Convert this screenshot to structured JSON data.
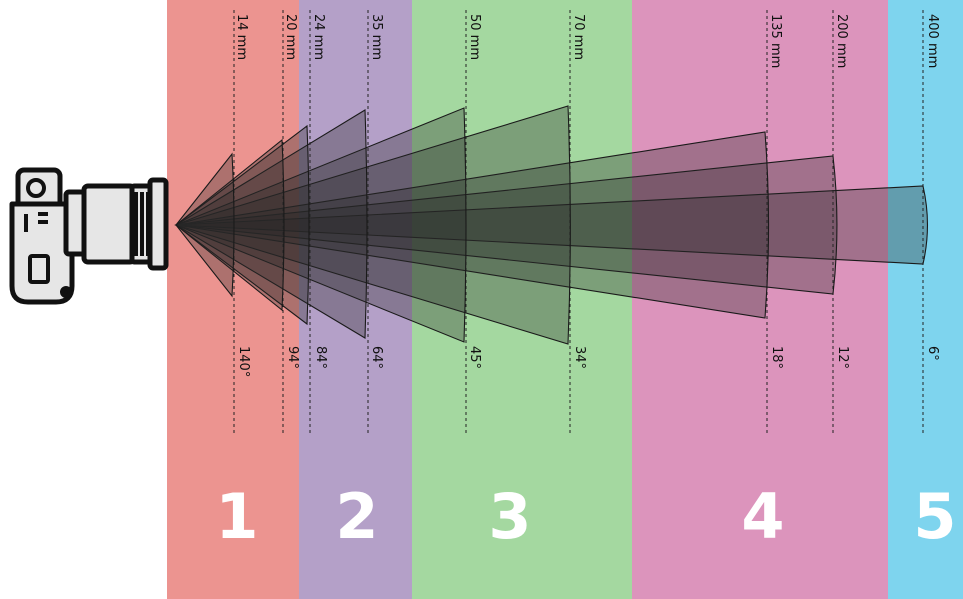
{
  "zones": [
    {
      "number": "1",
      "color": "#ec9490"
    },
    {
      "number": "2",
      "color": "#b4a0c8"
    },
    {
      "number": "3",
      "color": "#a4d8a0"
    },
    {
      "number": "4",
      "color": "#dc94bc"
    },
    {
      "number": "5",
      "color": "#7ed4ee"
    }
  ],
  "lenses": [
    {
      "focal": "14 mm",
      "angle": "140°"
    },
    {
      "focal": "20 mm",
      "angle": "94°"
    },
    {
      "focal": "24 mm",
      "angle": "84°"
    },
    {
      "focal": "35 mm",
      "angle": "64°"
    },
    {
      "focal": "50 mm",
      "angle": "45°"
    },
    {
      "focal": "70 mm",
      "angle": "34°"
    },
    {
      "focal": "135 mm",
      "angle": "18°"
    },
    {
      "focal": "200 mm",
      "angle": "12°"
    },
    {
      "focal": "400 mm",
      "angle": "6°"
    }
  ],
  "icons": {
    "camera": "camera-with-lens-icon"
  }
}
